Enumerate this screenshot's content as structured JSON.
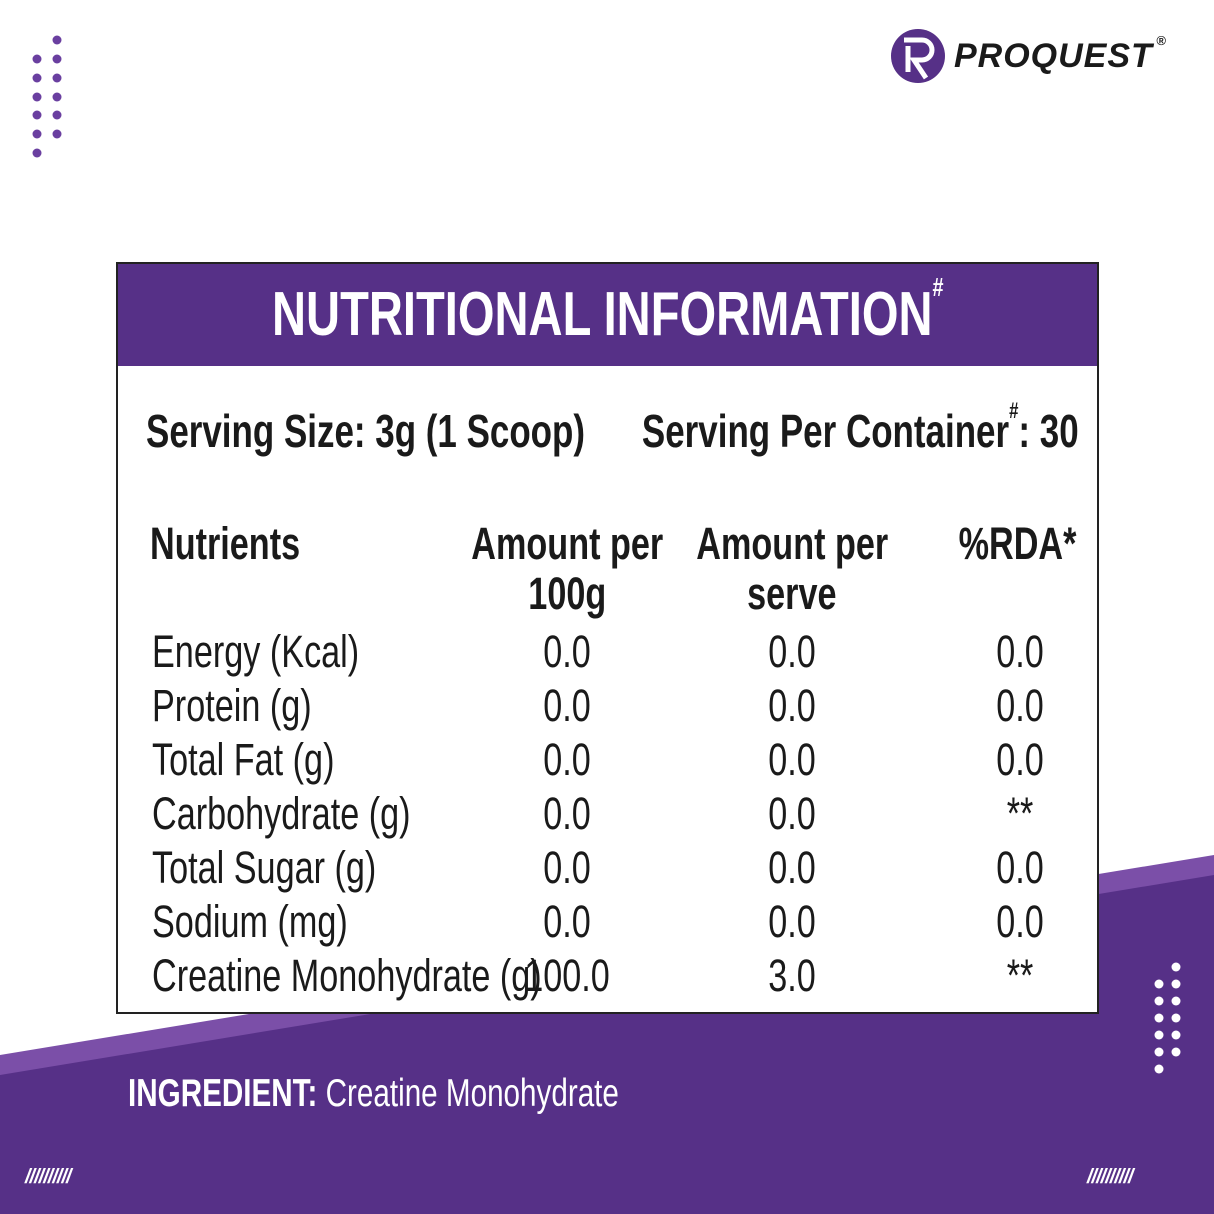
{
  "brand": {
    "name": "PROQUEST",
    "registered": "®",
    "color": "#563087",
    "accent_light": "#7b4fa8"
  },
  "panel": {
    "title": "NUTRITIONAL INFORMATION",
    "title_mark": "#",
    "serving_size": "Serving Size: 3g (1 Scoop)",
    "serving_per_container_label": "Serving Per Container",
    "serving_mark": "#",
    "serving_per_container_value": ": 30",
    "headers": {
      "nutrients": "Nutrients",
      "per100_line1": "Amount per",
      "per100_line2": "100g",
      "perserve_line1": "Amount per",
      "perserve_line2": "serve",
      "rda": "%RDA*"
    },
    "rows": [
      {
        "name": "Energy (Kcal)",
        "per100": "0.0",
        "perserve": "0.0",
        "rda": "0.0"
      },
      {
        "name": "Protein (g)",
        "per100": "0.0",
        "perserve": "0.0",
        "rda": "0.0"
      },
      {
        "name": "Total Fat (g)",
        "per100": "0.0",
        "perserve": "0.0",
        "rda": "0.0"
      },
      {
        "name": "Carbohydrate (g)",
        "per100": "0.0",
        "perserve": "0.0",
        "rda": "**"
      },
      {
        "name": "Total Sugar (g)",
        "per100": "0.0",
        "perserve": "0.0",
        "rda": "0.0"
      },
      {
        "name": "Sodium (mg)",
        "per100": "0.0",
        "perserve": "0.0",
        "rda": "0.0"
      },
      {
        "name": "Creatine Monohydrate (g)",
        "per100": "100.0",
        "perserve": "3.0",
        "rda": "**"
      }
    ]
  },
  "ingredient": {
    "label": "INGREDIENT:",
    "value": "Creatine Monohydrate"
  },
  "decor": {
    "slashes": "//////////"
  }
}
